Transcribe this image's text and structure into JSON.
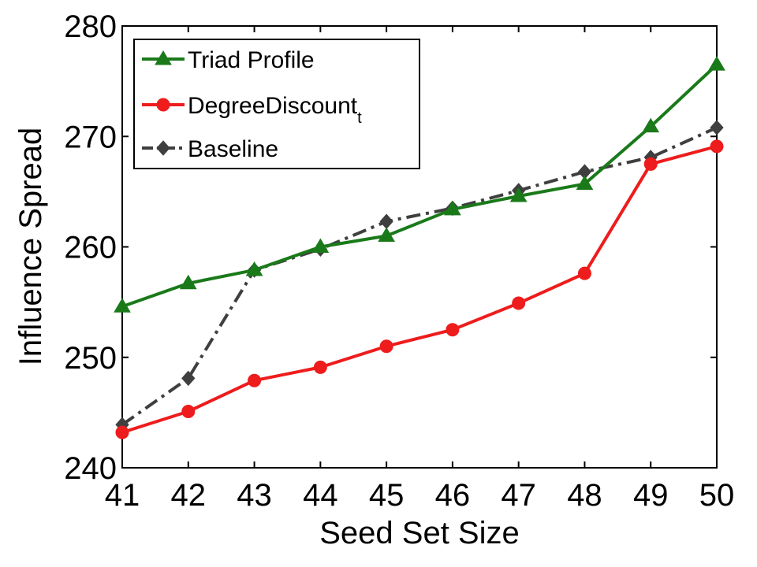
{
  "chart_data": {
    "type": "line",
    "title": "",
    "xlabel": "Seed Set Size",
    "ylabel": "Influence Spread",
    "x": [
      41,
      42,
      43,
      44,
      45,
      46,
      47,
      48,
      49,
      50
    ],
    "xlim": [
      41,
      50
    ],
    "ylim": [
      240,
      280
    ],
    "yticks": [
      240,
      250,
      260,
      270,
      280
    ],
    "grid": false,
    "legend_position": "top-left",
    "series": [
      {
        "name": "Triad Profile",
        "marker": "triangle",
        "line_style": "solid",
        "color": "#1a7a1a",
        "values": [
          254.6,
          256.7,
          257.9,
          260.0,
          261.0,
          263.4,
          264.6,
          265.7,
          270.9,
          276.5
        ]
      },
      {
        "name": "DegreeDiscount",
        "name_subscript": "t",
        "marker": "circle",
        "line_style": "solid",
        "color": "#ee1c1c",
        "values": [
          243.2,
          245.1,
          247.9,
          249.1,
          251.0,
          252.5,
          254.9,
          257.6,
          267.5,
          269.1
        ]
      },
      {
        "name": "Baseline",
        "marker": "diamond",
        "line_style": "dashdot",
        "color": "#3f3f3f",
        "values": [
          243.9,
          248.1,
          257.9,
          259.8,
          262.3,
          263.5,
          265.1,
          266.8,
          268.1,
          270.8
        ]
      }
    ]
  }
}
